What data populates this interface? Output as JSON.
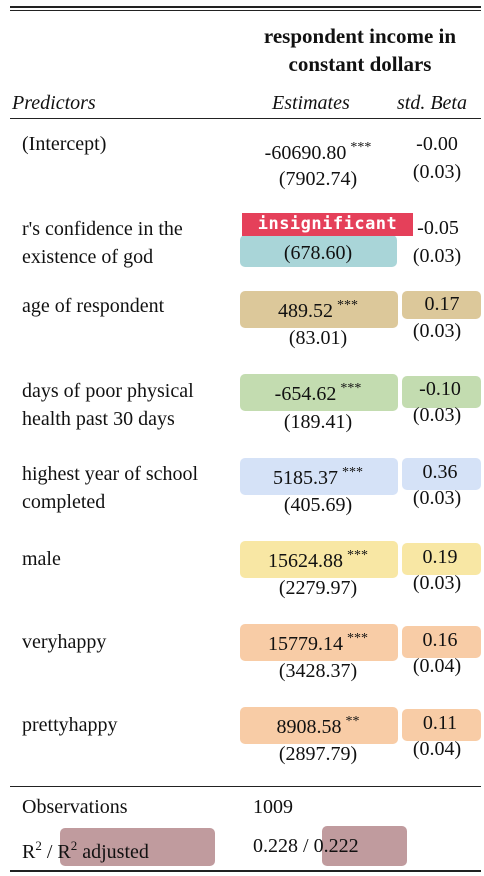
{
  "header": {
    "dependent_line1": "respondent income in",
    "dependent_line2": "constant dollars",
    "col_predictors": "Predictors",
    "col_estimates": "Estimates",
    "col_beta": "std. Beta"
  },
  "rows": [
    {
      "name_line1": "(Intercept)",
      "name_line2": "",
      "estimate": "-60690.80",
      "stars": "***",
      "se": "(7902.74)",
      "beta": "-0.00",
      "beta_se": "(0.03)"
    },
    {
      "name_line1": "r's confidence in the",
      "name_line2": "existence of god",
      "estimate": "insignificant",
      "stars": "",
      "se": "(678.60)",
      "beta": "-0.05",
      "beta_se": "(0.03)"
    },
    {
      "name_line1": "age of respondent",
      "name_line2": "",
      "estimate": "489.52",
      "stars": "***",
      "se": "(83.01)",
      "beta": "0.17",
      "beta_se": "(0.03)"
    },
    {
      "name_line1": "days of poor physical",
      "name_line2": "health past 30 days",
      "estimate": "-654.62",
      "stars": "***",
      "se": "(189.41)",
      "beta": "-0.10",
      "beta_se": "(0.03)"
    },
    {
      "name_line1": "highest year of school",
      "name_line2": "completed",
      "estimate": "5185.37",
      "stars": "***",
      "se": "(405.69)",
      "beta": "0.36",
      "beta_se": "(0.03)"
    },
    {
      "name_line1": "male",
      "name_line2": "",
      "estimate": "15624.88",
      "stars": "***",
      "se": "(2279.97)",
      "beta": "0.19",
      "beta_se": "(0.03)"
    },
    {
      "name_line1": "veryhappy",
      "name_line2": "",
      "estimate": "15779.14",
      "stars": "***",
      "se": "(3428.37)",
      "beta": "0.16",
      "beta_se": "(0.04)"
    },
    {
      "name_line1": "prettyhappy",
      "name_line2": "",
      "estimate": "8908.58",
      "stars": "**",
      "se": "(2897.79)",
      "beta": "0.11",
      "beta_se": "(0.04)"
    }
  ],
  "footer": {
    "observations_label": "Observations",
    "observations_value": "1009",
    "r2_prefix": "R",
    "r2_sup": "2",
    "r2_sep": " / ",
    "r2_adj_prefix": "R",
    "r2_adj_sup": "2",
    "r2_adj_word": " adjusted",
    "r2_value": "0.228 / ",
    "r2_adj_value": "0.222"
  },
  "colors": {
    "insignificant_tag": "#e5405a",
    "teal": "#a9d5d8",
    "tan": "#dcc89a",
    "green": "#c3dcb0",
    "blue": "#d5e2f7",
    "yellow": "#f8e7a4",
    "orange": "#f8cca6",
    "mauve": "#c09b9e"
  }
}
